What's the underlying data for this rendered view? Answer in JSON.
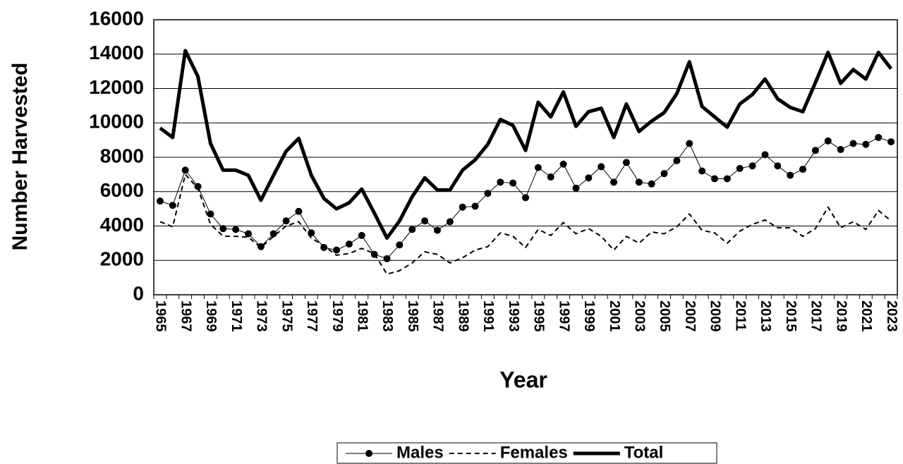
{
  "chart_data": {
    "type": "line",
    "x_label": "Year",
    "y_label": "Number Harvested",
    "categories": [
      "1965",
      null,
      "1967",
      null,
      "1969",
      null,
      "1971",
      null,
      "1973",
      null,
      "1975",
      null,
      "1977",
      null,
      "1979",
      null,
      "1981",
      null,
      "1983",
      null,
      "1985",
      null,
      "1987",
      null,
      "1989",
      null,
      "1991",
      null,
      "1993",
      null,
      "1995",
      null,
      "1997",
      null,
      "1999",
      null,
      "2001",
      null,
      "2003",
      null,
      "2005",
      null,
      "2007",
      null,
      "2009",
      null,
      "2011",
      null,
      "2013",
      null,
      "2015",
      null,
      "2017",
      null,
      "2019",
      null,
      "2021",
      null,
      "2023"
    ],
    "series": [
      {
        "name": "Males",
        "color": "#000000",
        "width": 1,
        "dash": false,
        "marker": true,
        "values": [
          5450,
          5200,
          7250,
          6300,
          4700,
          3850,
          3800,
          3550,
          2800,
          3550,
          4300,
          4850,
          3600,
          2750,
          2600,
          2950,
          3450,
          2350,
          2100,
          2900,
          3800,
          4300,
          3750,
          4250,
          5100,
          5150,
          5900,
          6550,
          6500,
          5650,
          7400,
          6850,
          7600,
          6200,
          6800,
          7450,
          6550,
          7700,
          6550,
          6450,
          7050,
          7800,
          8800,
          7200,
          6750,
          6750,
          7350,
          7500,
          8150,
          7500,
          6950,
          7300,
          8400,
          8950,
          8450,
          8800,
          8750,
          9150,
          8900
        ]
      },
      {
        "name": "Females",
        "color": "#000000",
        "width": 2,
        "dash": true,
        "marker": false,
        "values": [
          4250,
          3950,
          7000,
          6200,
          4100,
          3400,
          3400,
          3350,
          2750,
          3400,
          4000,
          4250,
          3300,
          2850,
          2300,
          2400,
          2700,
          2400,
          1200,
          1400,
          1850,
          2500,
          2350,
          1850,
          2150,
          2600,
          2800,
          3600,
          3400,
          2750,
          3800,
          3450,
          4200,
          3550,
          3850,
          3400,
          2600,
          3400,
          3000,
          3650,
          3550,
          3950,
          4700,
          3750,
          3600,
          3000,
          3700,
          4100,
          4350,
          3900,
          3900,
          3400,
          3850,
          5100,
          3900,
          4250,
          3800,
          4900,
          4300
        ]
      },
      {
        "name": "Total",
        "color": "#000000",
        "width": 5,
        "dash": false,
        "marker": false,
        "values": [
          9700,
          9150,
          14200,
          12700,
          8800,
          7250,
          7250,
          6950,
          5500,
          6950,
          8350,
          9100,
          6950,
          5600,
          5000,
          5350,
          6150,
          4750,
          3300,
          4300,
          5700,
          6800,
          6100,
          6100,
          7250,
          7850,
          8750,
          10200,
          9850,
          8400,
          11200,
          10350,
          11800,
          9800,
          10650,
          10850,
          9150,
          11100,
          9500,
          10100,
          10600,
          11700,
          13550,
          10950,
          10350,
          9750,
          11100,
          11650,
          12550,
          11400,
          10900,
          10650,
          12350,
          14100,
          12300,
          13100,
          12550,
          14100,
          13150
        ]
      }
    ],
    "ylim": [
      0,
      16000
    ],
    "yticks": [
      0,
      2000,
      4000,
      6000,
      8000,
      10000,
      12000,
      14000,
      16000
    ],
    "grid": true,
    "legend": "bottom"
  }
}
